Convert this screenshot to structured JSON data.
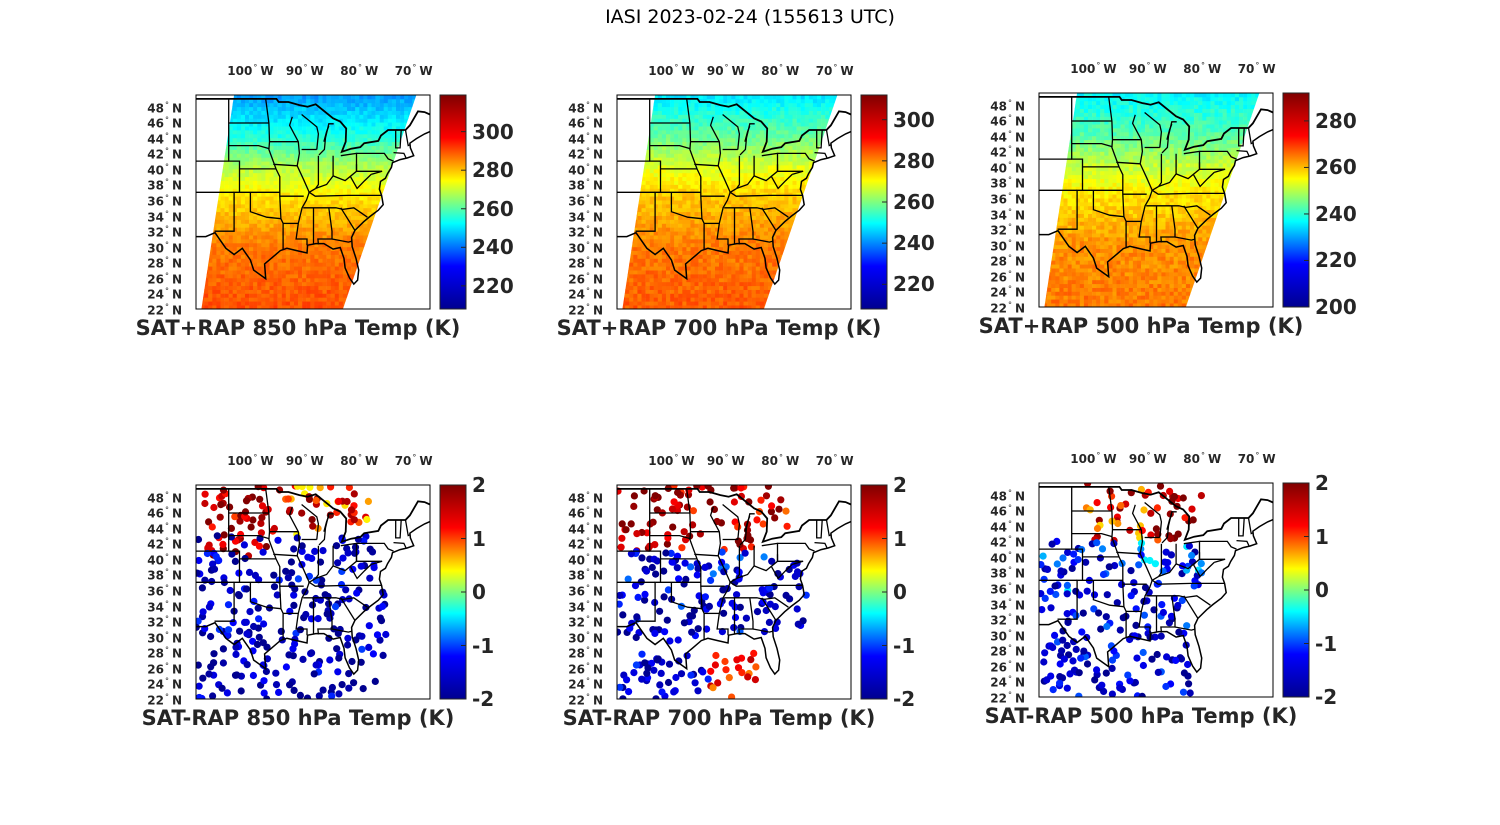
{
  "figure": {
    "title": "IASI 2023-02-24 (155613 UTC)",
    "colors": {
      "border": "#000000",
      "text": "#262626"
    }
  },
  "map": {
    "extent": {
      "lon": [
        -110,
        -67
      ],
      "lat": [
        22,
        49.5
      ]
    },
    "lon_ticks": [
      {
        "value": -100,
        "text": "100",
        "hemi": "W"
      },
      {
        "value": -90,
        "text": "90",
        "hemi": "W"
      },
      {
        "value": -80,
        "text": "80",
        "hemi": "W"
      },
      {
        "value": -70,
        "text": "70",
        "hemi": "W"
      }
    ],
    "lat_ticks": [
      {
        "value": 48,
        "text": "48",
        "hemi": "N"
      },
      {
        "value": 46,
        "text": "46",
        "hemi": "N"
      },
      {
        "value": 44,
        "text": "44",
        "hemi": "N"
      },
      {
        "value": 42,
        "text": "42",
        "hemi": "N"
      },
      {
        "value": 40,
        "text": "40",
        "hemi": "N"
      },
      {
        "value": 38,
        "text": "38",
        "hemi": "N"
      },
      {
        "value": 36,
        "text": "36",
        "hemi": "N"
      },
      {
        "value": 34,
        "text": "34",
        "hemi": "N"
      },
      {
        "value": 32,
        "text": "32",
        "hemi": "N"
      },
      {
        "value": 30,
        "text": "30",
        "hemi": "N"
      },
      {
        "value": 28,
        "text": "28",
        "hemi": "N"
      },
      {
        "value": 26,
        "text": "26",
        "hemi": "N"
      },
      {
        "value": 24,
        "text": "24",
        "hemi": "N"
      },
      {
        "value": 22,
        "text": "22",
        "hemi": "N"
      }
    ],
    "swath_corners_lonlat": [
      [
        -103,
        49.5
      ],
      [
        -69.5,
        49.5
      ],
      [
        -83,
        22
      ],
      [
        -109,
        22
      ]
    ]
  },
  "colormap": {
    "name": "jet",
    "stops": [
      "#00008f",
      "#0000ff",
      "#00ffff",
      "#ffff00",
      "#ff0000",
      "#800000"
    ]
  },
  "panels": [
    {
      "name": "sat-rap-850",
      "title": "SAT+RAP 850 hPa Temp (K)",
      "kind": "field",
      "clim": [
        208,
        319
      ],
      "cbar_ticks": [
        220,
        240,
        260,
        280,
        300
      ],
      "field_profile": [
        [
          22,
          290
        ],
        [
          30,
          286
        ],
        [
          36,
          277
        ],
        [
          40,
          268
        ],
        [
          44,
          255
        ],
        [
          49.5,
          243
        ]
      ]
    },
    {
      "name": "sat-rap-700",
      "title": "SAT+RAP 700 hPa Temp (K)",
      "kind": "field",
      "clim": [
        208,
        312
      ],
      "cbar_ticks": [
        220,
        240,
        260,
        280,
        300
      ],
      "field_profile": [
        [
          22,
          284
        ],
        [
          30,
          281
        ],
        [
          36,
          275
        ],
        [
          40,
          268
        ],
        [
          44,
          258
        ],
        [
          49.5,
          247
        ]
      ]
    },
    {
      "name": "sat-rap-500",
      "title": "SAT+RAP 500 hPa Temp (K)",
      "kind": "field",
      "clim": [
        200,
        292
      ],
      "cbar_ticks": [
        200,
        220,
        240,
        260,
        280
      ],
      "field_profile": [
        [
          22,
          265
        ],
        [
          30,
          263
        ],
        [
          36,
          257
        ],
        [
          40,
          251
        ],
        [
          44,
          243
        ],
        [
          49.5,
          236
        ]
      ]
    },
    {
      "name": "sat-minus-rap-850",
      "title": "SAT-RAP 850 hPa Temp (K)",
      "kind": "diff",
      "clim": [
        -2,
        2
      ],
      "cbar_ticks": [
        -2,
        -1,
        0,
        1,
        2
      ],
      "diff_regions": [
        {
          "lon": [
            -110,
            -97
          ],
          "lat": [
            40,
            49.5
          ],
          "value": 1.8
        },
        {
          "lon": [
            -97,
            -78
          ],
          "lat": [
            43,
            49.5
          ],
          "value": 1.2
        },
        {
          "lon": [
            -110,
            -75
          ],
          "lat": [
            22,
            43
          ],
          "value": -1.8
        }
      ]
    },
    {
      "name": "sat-minus-rap-700",
      "title": "SAT-RAP 700 hPa Temp (K)",
      "kind": "diff",
      "clim": [
        -2,
        2
      ],
      "cbar_ticks": [
        -2,
        -1,
        0,
        1,
        2
      ],
      "diff_regions": [
        {
          "lon": [
            -110,
            -85
          ],
          "lat": [
            41,
            49.5
          ],
          "value": 1.8
        },
        {
          "lon": [
            -85,
            -78
          ],
          "lat": [
            44,
            49.5
          ],
          "value": 1.5
        },
        {
          "lon": [
            -110,
            -75
          ],
          "lat": [
            30,
            41
          ],
          "value": -1.6
        },
        {
          "lon": [
            -93,
            -84
          ],
          "lat": [
            22,
            28
          ],
          "value": 1.3
        },
        {
          "lon": [
            -110,
            -93
          ],
          "lat": [
            22,
            30
          ],
          "value": -1.8
        }
      ]
    },
    {
      "name": "sat-minus-rap-500",
      "title": "SAT-RAP 500 hPa Temp (K)",
      "kind": "diff",
      "clim": [
        -2,
        2
      ],
      "cbar_ticks": [
        -2,
        -1,
        0,
        1,
        2
      ],
      "diff_regions": [
        {
          "lon": [
            -102,
            -88
          ],
          "lat": [
            42,
            49.5
          ],
          "value": 1.3
        },
        {
          "lon": [
            -88,
            -80
          ],
          "lat": [
            42,
            49.5
          ],
          "value": 1.9
        },
        {
          "lon": [
            -110,
            -80
          ],
          "lat": [
            35,
            42
          ],
          "value": -1.2
        },
        {
          "lon": [
            -110,
            -82
          ],
          "lat": [
            22,
            35
          ],
          "value": -1.6
        }
      ]
    }
  ]
}
